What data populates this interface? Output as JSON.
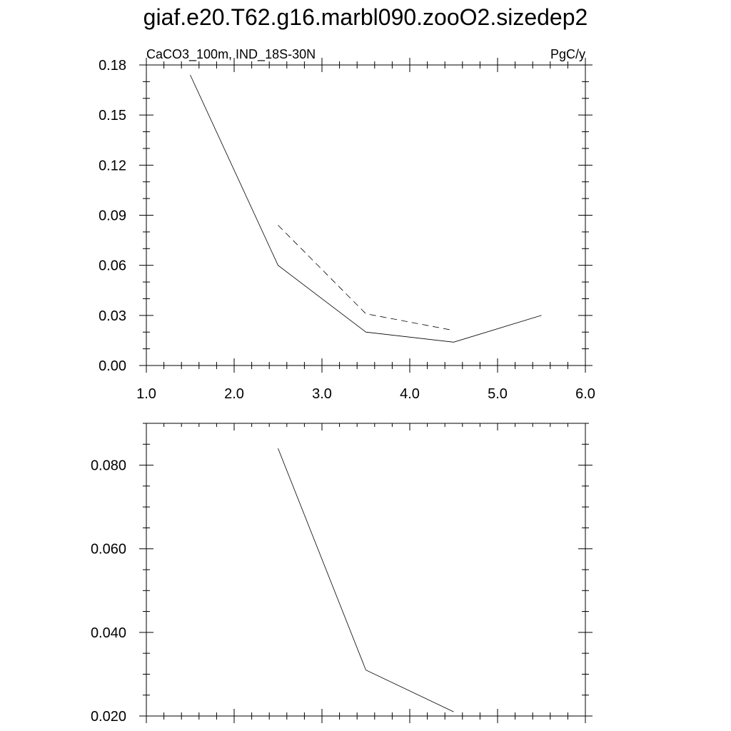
{
  "title": "giaf.e20.T62.g16.marbl090.zooO2.sizedep2",
  "chart_data": [
    {
      "type": "line",
      "left_label": "CaCO3_100m, IND_18S-30N",
      "right_label": "PgC/y",
      "xlim": [
        1.0,
        6.0
      ],
      "ylim": [
        0.0,
        0.18
      ],
      "x_ticks": [
        1.0,
        2.0,
        3.0,
        4.0,
        5.0,
        6.0
      ],
      "x_tick_labels": [
        "1.0",
        "2.0",
        "3.0",
        "4.0",
        "5.0",
        "6.0"
      ],
      "y_ticks": [
        0.0,
        0.03,
        0.06,
        0.09,
        0.12,
        0.15,
        0.18
      ],
      "y_tick_labels": [
        "0.00",
        "0.03",
        "0.06",
        "0.09",
        "0.12",
        "0.15",
        "0.18"
      ],
      "series": [
        {
          "style": "solid",
          "x": [
            1.5,
            2.5,
            3.5,
            4.5,
            5.5
          ],
          "y": [
            0.174,
            0.06,
            0.02,
            0.014,
            0.03
          ]
        },
        {
          "style": "dashed",
          "x": [
            2.5,
            3.5,
            4.5
          ],
          "y": [
            0.084,
            0.031,
            0.021
          ]
        }
      ]
    },
    {
      "type": "line",
      "xlim": [
        1.0,
        6.0
      ],
      "ylim": [
        0.02,
        0.09
      ],
      "x_ticks": [
        1.0,
        2.0,
        3.0,
        4.0,
        5.0,
        6.0
      ],
      "y_ticks": [
        0.02,
        0.04,
        0.06,
        0.08
      ],
      "y_tick_labels": [
        "0.020",
        "0.040",
        "0.060",
        "0.080"
      ],
      "series": [
        {
          "style": "solid",
          "x": [
            2.5,
            3.5,
            4.5
          ],
          "y": [
            0.084,
            0.031,
            0.021
          ]
        }
      ]
    }
  ]
}
